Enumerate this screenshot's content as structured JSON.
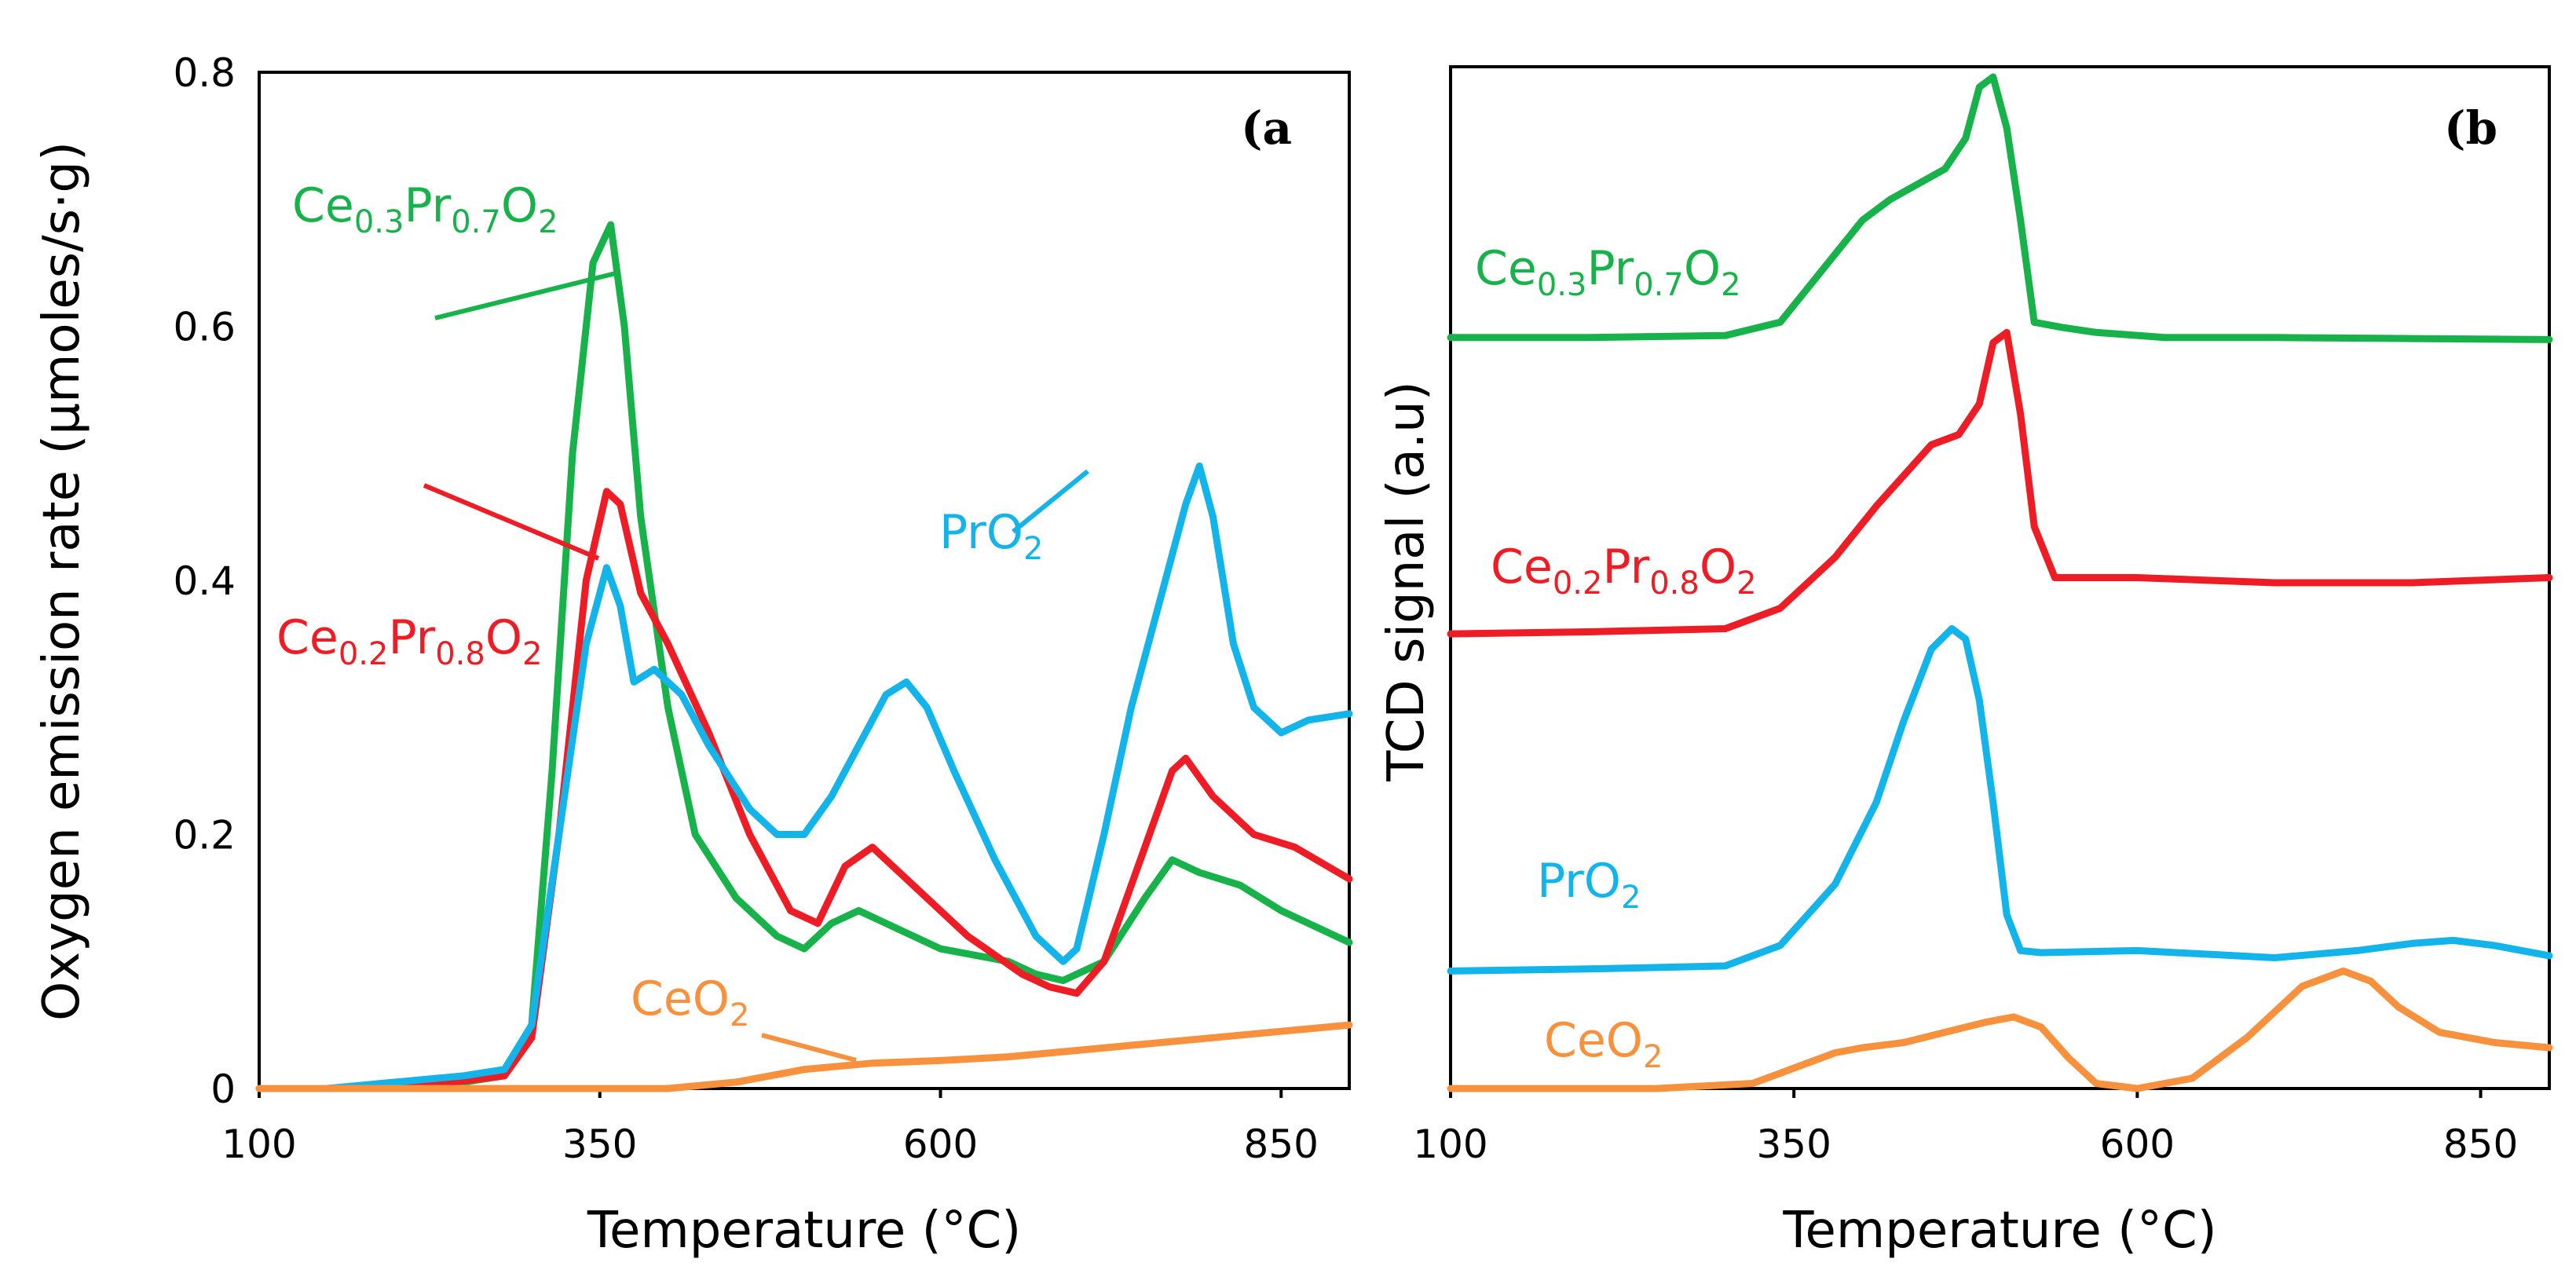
{
  "colors": {
    "ce03": "#17b34a",
    "ce02": "#ee1c24",
    "pro2": "#12b4ea",
    "ceo2": "#f7913d",
    "axis": "#000000"
  },
  "chart_data": [
    {
      "type": "line",
      "panel_label": "(a",
      "xlabel": "Temperature (°C)",
      "ylabel": "Oxygen emission rate (µmoles/s·g)",
      "xlim": [
        100,
        900
      ],
      "ylim": [
        0,
        0.8
      ],
      "x_ticks": [
        "100",
        "350",
        "600",
        "850"
      ],
      "y_ticks": [
        "0",
        "0.2",
        "0.4",
        "0.6",
        "0.8"
      ],
      "legend": [
        {
          "key": "ce03",
          "base": "Ce",
          "s1": "0.3",
          "mid": "Pr",
          "s2": "0.7",
          "end": "O",
          "s3": "2"
        },
        {
          "key": "ce02",
          "base": "Ce",
          "s1": "0.2",
          "mid": "Pr",
          "s2": "0.8",
          "end": "O",
          "s3": "2"
        },
        {
          "key": "pro2",
          "base": "PrO",
          "s3": "2"
        },
        {
          "key": "ceo2",
          "base": "CeO",
          "s3": "2"
        }
      ],
      "series": [
        {
          "name": "Ce0.3Pr0.7O2",
          "key": "ce03",
          "x": [
            100,
            150,
            200,
            250,
            280,
            300,
            315,
            330,
            345,
            358,
            368,
            380,
            400,
            420,
            450,
            480,
            500,
            520,
            540,
            560,
            600,
            650,
            670,
            690,
            720,
            750,
            770,
            790,
            820,
            850,
            900
          ],
          "y": [
            0,
            0,
            0.002,
            0.005,
            0.01,
            0.05,
            0.25,
            0.5,
            0.65,
            0.68,
            0.6,
            0.45,
            0.3,
            0.2,
            0.15,
            0.12,
            0.11,
            0.13,
            0.14,
            0.13,
            0.11,
            0.1,
            0.09,
            0.085,
            0.1,
            0.15,
            0.18,
            0.17,
            0.16,
            0.14,
            0.115
          ]
        },
        {
          "name": "Ce0.2Pr0.8O2",
          "key": "ce02",
          "x": [
            100,
            150,
            200,
            250,
            280,
            300,
            320,
            340,
            355,
            365,
            380,
            400,
            430,
            460,
            490,
            510,
            530,
            550,
            580,
            620,
            660,
            680,
            700,
            720,
            750,
            770,
            780,
            800,
            830,
            860,
            900
          ],
          "y": [
            0,
            0,
            0.002,
            0.006,
            0.01,
            0.04,
            0.2,
            0.4,
            0.47,
            0.46,
            0.39,
            0.35,
            0.28,
            0.2,
            0.14,
            0.13,
            0.175,
            0.19,
            0.16,
            0.12,
            0.09,
            0.08,
            0.075,
            0.1,
            0.19,
            0.25,
            0.26,
            0.23,
            0.2,
            0.19,
            0.165
          ]
        },
        {
          "name": "PrO2",
          "key": "pro2",
          "x": [
            100,
            150,
            200,
            250,
            280,
            300,
            320,
            340,
            355,
            365,
            375,
            390,
            410,
            430,
            460,
            480,
            500,
            520,
            540,
            560,
            575,
            590,
            610,
            640,
            670,
            690,
            700,
            720,
            740,
            760,
            780,
            790,
            800,
            815,
            830,
            850,
            870,
            900
          ],
          "y": [
            0,
            0,
            0.005,
            0.01,
            0.015,
            0.05,
            0.2,
            0.35,
            0.41,
            0.38,
            0.32,
            0.33,
            0.31,
            0.27,
            0.22,
            0.2,
            0.2,
            0.23,
            0.27,
            0.31,
            0.32,
            0.3,
            0.25,
            0.18,
            0.12,
            0.1,
            0.11,
            0.2,
            0.3,
            0.38,
            0.46,
            0.49,
            0.45,
            0.35,
            0.3,
            0.28,
            0.29,
            0.295
          ]
        },
        {
          "name": "CeO2",
          "key": "ceo2",
          "x": [
            100,
            300,
            400,
            450,
            500,
            550,
            600,
            650,
            700,
            750,
            800,
            850,
            900
          ],
          "y": [
            0,
            0,
            0,
            0.005,
            0.015,
            0.02,
            0.022,
            0.025,
            0.03,
            0.035,
            0.04,
            0.045,
            0.05
          ]
        }
      ]
    },
    {
      "type": "line",
      "panel_label": "(b",
      "xlabel": "Temperature (°C)",
      "ylabel": "TCD signal (a.u)",
      "xlim": [
        100,
        900
      ],
      "ylim": [
        0,
        1
      ],
      "x_ticks": [
        "100",
        "350",
        "600",
        "850"
      ],
      "y_ticks": [],
      "legend": [
        {
          "key": "ce03",
          "base": "Ce",
          "s1": "0.3",
          "mid": "Pr",
          "s2": "0.7",
          "end": "O",
          "s3": "2"
        },
        {
          "key": "ce02",
          "base": "Ce",
          "s1": "0.2",
          "mid": "Pr",
          "s2": "0.8",
          "end": "O",
          "s3": "2"
        },
        {
          "key": "pro2",
          "base": "PrO",
          "s3": "2"
        },
        {
          "key": "ceo2",
          "base": "CeO",
          "s3": "2"
        }
      ],
      "series": [
        {
          "name": "Ce0.3Pr0.7O2",
          "key": "ce03",
          "x": [
            100,
            200,
            300,
            340,
            370,
            400,
            420,
            440,
            460,
            475,
            485,
            495,
            505,
            515,
            525,
            545,
            570,
            620,
            700,
            800,
            900
          ],
          "y": [
            0.735,
            0.735,
            0.737,
            0.75,
            0.8,
            0.85,
            0.87,
            0.885,
            0.9,
            0.93,
            0.98,
            0.99,
            0.94,
            0.85,
            0.75,
            0.745,
            0.74,
            0.735,
            0.735,
            0.734,
            0.733
          ]
        },
        {
          "name": "Ce0.2Pr0.8O2",
          "key": "ce02",
          "x": [
            100,
            200,
            300,
            340,
            380,
            410,
            430,
            450,
            470,
            485,
            495,
            505,
            515,
            525,
            540,
            600,
            700,
            800,
            900
          ],
          "y": [
            0.445,
            0.447,
            0.45,
            0.47,
            0.52,
            0.57,
            0.6,
            0.63,
            0.64,
            0.67,
            0.73,
            0.74,
            0.66,
            0.55,
            0.5,
            0.5,
            0.495,
            0.495,
            0.5
          ]
        },
        {
          "name": "PrO2",
          "key": "pro2",
          "x": [
            100,
            200,
            300,
            340,
            380,
            410,
            430,
            450,
            465,
            475,
            485,
            495,
            505,
            515,
            530,
            600,
            700,
            760,
            800,
            830,
            860,
            900
          ],
          "y": [
            0.115,
            0.117,
            0.12,
            0.14,
            0.2,
            0.28,
            0.36,
            0.43,
            0.45,
            0.44,
            0.38,
            0.28,
            0.17,
            0.135,
            0.133,
            0.135,
            0.128,
            0.135,
            0.142,
            0.145,
            0.14,
            0.13
          ]
        },
        {
          "name": "CeO2",
          "key": "ceo2",
          "x": [
            100,
            250,
            320,
            350,
            380,
            400,
            430,
            460,
            490,
            510,
            530,
            550,
            570,
            600,
            640,
            680,
            720,
            750,
            770,
            790,
            820,
            860,
            900
          ],
          "y": [
            0,
            0,
            0.005,
            0.02,
            0.035,
            0.04,
            0.045,
            0.055,
            0.065,
            0.07,
            0.06,
            0.03,
            0.005,
            0,
            0.01,
            0.05,
            0.1,
            0.115,
            0.105,
            0.08,
            0.055,
            0.045,
            0.04
          ]
        }
      ]
    }
  ]
}
